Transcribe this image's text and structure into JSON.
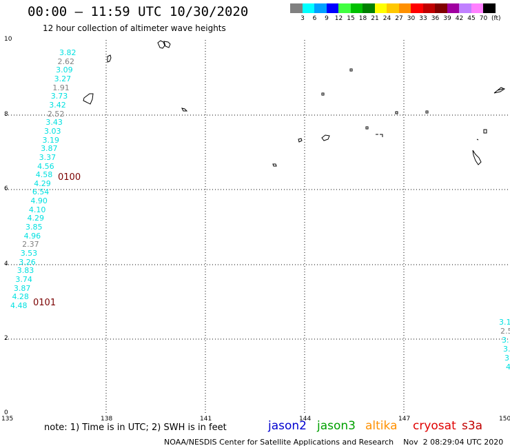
{
  "header": {
    "title": "00:00 – 11:59 UTC 10/30/2020",
    "subtitle": "12 hour collection of altimeter wave heights"
  },
  "colorbar": {
    "unit": "(ft)",
    "bins": [
      {
        "label": "3",
        "color": "#808080"
      },
      {
        "label": "6",
        "color": "#00ffff"
      },
      {
        "label": "9",
        "color": "#00a0ff"
      },
      {
        "label": "12",
        "color": "#0000ff"
      },
      {
        "label": "15",
        "color": "#40ff40"
      },
      {
        "label": "18",
        "color": "#00c000"
      },
      {
        "label": "21",
        "color": "#008000"
      },
      {
        "label": "24",
        "color": "#ffff00"
      },
      {
        "label": "27",
        "color": "#ffc800"
      },
      {
        "label": "30",
        "color": "#ff9000"
      },
      {
        "label": "33",
        "color": "#ff0000"
      },
      {
        "label": "36",
        "color": "#c00000"
      },
      {
        "label": "39",
        "color": "#800000"
      },
      {
        "label": "42",
        "color": "#a000a0"
      },
      {
        "label": "45",
        "color": "#c080ff"
      },
      {
        "label": "70",
        "color": "#ff80ff"
      },
      {
        "label": "",
        "color": "#000000"
      }
    ]
  },
  "map_axes": {
    "x_ticks": [
      "135",
      "138",
      "141",
      "144",
      "147",
      "150"
    ],
    "y_ticks": [
      "10",
      "8",
      "6",
      "4",
      "2",
      "0"
    ]
  },
  "track_a": [
    {
      "v": "3.82",
      "c": "#00e0e0"
    },
    {
      "v": "2.62",
      "c": "#808080"
    },
    {
      "v": "3.09",
      "c": "#00e0e0"
    },
    {
      "v": "3.27",
      "c": "#00e0e0"
    },
    {
      "v": "1.91",
      "c": "#808080"
    },
    {
      "v": "3.73",
      "c": "#00e0e0"
    },
    {
      "v": "3.42",
      "c": "#00e0e0"
    },
    {
      "v": "2.52",
      "c": "#808080"
    },
    {
      "v": "3.43",
      "c": "#00e0e0"
    },
    {
      "v": "3.03",
      "c": "#00e0e0"
    },
    {
      "v": "3.19",
      "c": "#00e0e0"
    },
    {
      "v": "3.87",
      "c": "#00e0e0"
    },
    {
      "v": "3.37",
      "c": "#00e0e0"
    },
    {
      "v": "4.56",
      "c": "#00e0e0"
    },
    {
      "v": "4.58",
      "c": "#00e0e0"
    },
    {
      "v": "4.29",
      "c": "#00e0e0"
    },
    {
      "v": "6.54",
      "c": "#00e0e0"
    },
    {
      "v": "4.90",
      "c": "#00e0e0"
    },
    {
      "v": "4.10",
      "c": "#00e0e0"
    },
    {
      "v": "4.29",
      "c": "#00e0e0"
    },
    {
      "v": "3.85",
      "c": "#00e0e0"
    },
    {
      "v": "4.96",
      "c": "#00e0e0"
    },
    {
      "v": "2.37",
      "c": "#808080"
    },
    {
      "v": "3.53",
      "c": "#00e0e0"
    },
    {
      "v": "3.26",
      "c": "#00e0e0"
    },
    {
      "v": "3.83",
      "c": "#00e0e0"
    },
    {
      "v": "3.74",
      "c": "#00e0e0"
    },
    {
      "v": "3.87",
      "c": "#00e0e0"
    },
    {
      "v": "4.28",
      "c": "#00e0e0"
    },
    {
      "v": "4.48",
      "c": "#00e0e0"
    }
  ],
  "track_b": [
    {
      "v": "3.1",
      "c": "#00e0e0"
    },
    {
      "v": "2.5",
      "c": "#808080"
    },
    {
      "v": "3.",
      "c": "#00e0e0"
    },
    {
      "v": "3.",
      "c": "#00e0e0"
    },
    {
      "v": "3",
      "c": "#00e0e0"
    },
    {
      "v": "4",
      "c": "#00e0e0"
    }
  ],
  "time_labels": [
    "0100",
    "0101"
  ],
  "footer": {
    "note": "note:  1) Time is in UTC;  2) SWH is in feet",
    "satellites": [
      {
        "name": "jason2",
        "color": "#0000d0"
      },
      {
        "name": "jason3",
        "color": "#00a000"
      },
      {
        "name": "altika",
        "color": "#ff9000"
      },
      {
        "name": "cryosat",
        "color": "#e00000"
      },
      {
        "name": "s3a",
        "color": "#c00000"
      }
    ],
    "credit": "NOAA/NESDIS Center for Satellite Applications and Research    Nov  2 08:29:04 UTC 2020"
  }
}
